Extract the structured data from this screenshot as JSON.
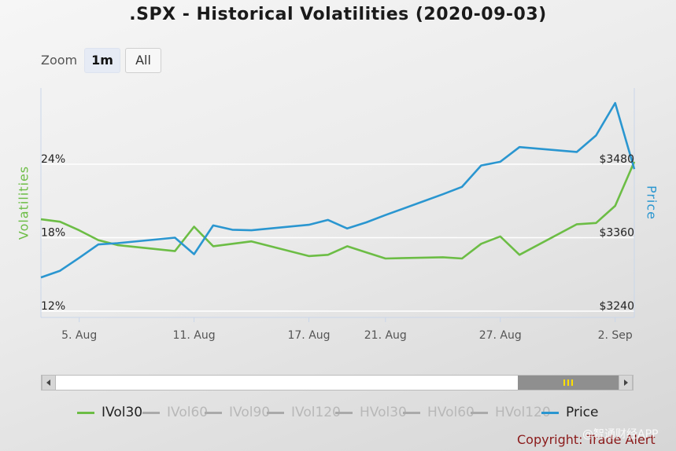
{
  "title": ".SPX - Historical Volatilities (2020-09-03)",
  "zoom": {
    "label": "Zoom",
    "buttons": [
      {
        "label": "1m",
        "active": true
      },
      {
        "label": "All",
        "active": false
      }
    ]
  },
  "colors": {
    "ivol30": "#6cbd45",
    "price": "#2a96d0",
    "disabled": "#aaaaaa",
    "grid": "#ffffff",
    "copyright": "#8b1a1a"
  },
  "legend": [
    {
      "label": "IVol30",
      "active": true,
      "color": "#6cbd45"
    },
    {
      "label": "IVol60",
      "active": false
    },
    {
      "label": "IVol90",
      "active": false
    },
    {
      "label": "IVol120",
      "active": false
    },
    {
      "label": "HVol30",
      "active": false
    },
    {
      "label": "HVol60",
      "active": false
    },
    {
      "label": "HVol120",
      "active": false
    },
    {
      "label": "Price",
      "active": true,
      "color": "#2a96d0"
    }
  ],
  "copyright": "Copyright: Trade Alert",
  "watermark": "@智通财经APP",
  "chart_data": {
    "type": "line",
    "title": ".SPX - Historical Volatilities (2020-09-03)",
    "x_axis": {
      "type": "date",
      "ticks": [
        "5. Aug",
        "11. Aug",
        "17. Aug",
        "21. Aug",
        "27. Aug",
        "2. Sep"
      ],
      "range": [
        "2020-08-03",
        "2020-09-03"
      ]
    },
    "y_left": {
      "label": "Volatilities",
      "unit": "%",
      "ticks": [
        "12%",
        "18%",
        "24%"
      ],
      "range": [
        12,
        24
      ]
    },
    "y_right": {
      "label": "Price",
      "unit": "$",
      "ticks": [
        "$3240",
        "$3360",
        "$3480"
      ],
      "range": [
        3240,
        3480
      ]
    },
    "grid": "horizontal",
    "legend_position": "bottom",
    "series": [
      {
        "name": "IVol30",
        "axis": "left",
        "points": [
          [
            "2020-08-03",
            19.5
          ],
          [
            "2020-08-04",
            19.3
          ],
          [
            "2020-08-05",
            18.6
          ],
          [
            "2020-08-06",
            17.8
          ],
          [
            "2020-08-07",
            17.4
          ],
          [
            "2020-08-10",
            16.9
          ],
          [
            "2020-08-11",
            18.9
          ],
          [
            "2020-08-12",
            17.3
          ],
          [
            "2020-08-13",
            17.5
          ],
          [
            "2020-08-14",
            17.7
          ],
          [
            "2020-08-17",
            16.5
          ],
          [
            "2020-08-18",
            16.6
          ],
          [
            "2020-08-19",
            17.3
          ],
          [
            "2020-08-20",
            16.8
          ],
          [
            "2020-08-21",
            16.3
          ],
          [
            "2020-08-24",
            16.4
          ],
          [
            "2020-08-25",
            16.3
          ],
          [
            "2020-08-26",
            17.5
          ],
          [
            "2020-08-27",
            18.1
          ],
          [
            "2020-08-28",
            16.6
          ],
          [
            "2020-08-31",
            19.1
          ],
          [
            "2020-09-01",
            19.2
          ],
          [
            "2020-09-02",
            20.6
          ],
          [
            "2020-09-03",
            24.2
          ]
        ]
      },
      {
        "name": "Price",
        "axis": "right",
        "points": [
          [
            "2020-08-03",
            3295
          ],
          [
            "2020-08-04",
            3306
          ],
          [
            "2020-08-05",
            3327
          ],
          [
            "2020-08-06",
            3349
          ],
          [
            "2020-08-07",
            3351
          ],
          [
            "2020-08-10",
            3360
          ],
          [
            "2020-08-11",
            3333
          ],
          [
            "2020-08-12",
            3380
          ],
          [
            "2020-08-13",
            3373
          ],
          [
            "2020-08-14",
            3372
          ],
          [
            "2020-08-17",
            3381
          ],
          [
            "2020-08-18",
            3389
          ],
          [
            "2020-08-19",
            3375
          ],
          [
            "2020-08-20",
            3385
          ],
          [
            "2020-08-21",
            3397
          ],
          [
            "2020-08-24",
            3431
          ],
          [
            "2020-08-25",
            3443
          ],
          [
            "2020-08-26",
            3478
          ],
          [
            "2020-08-27",
            3484
          ],
          [
            "2020-08-28",
            3508
          ],
          [
            "2020-08-31",
            3500
          ],
          [
            "2020-09-01",
            3527
          ],
          [
            "2020-09-02",
            3580
          ],
          [
            "2020-09-03",
            3472
          ]
        ]
      }
    ]
  }
}
